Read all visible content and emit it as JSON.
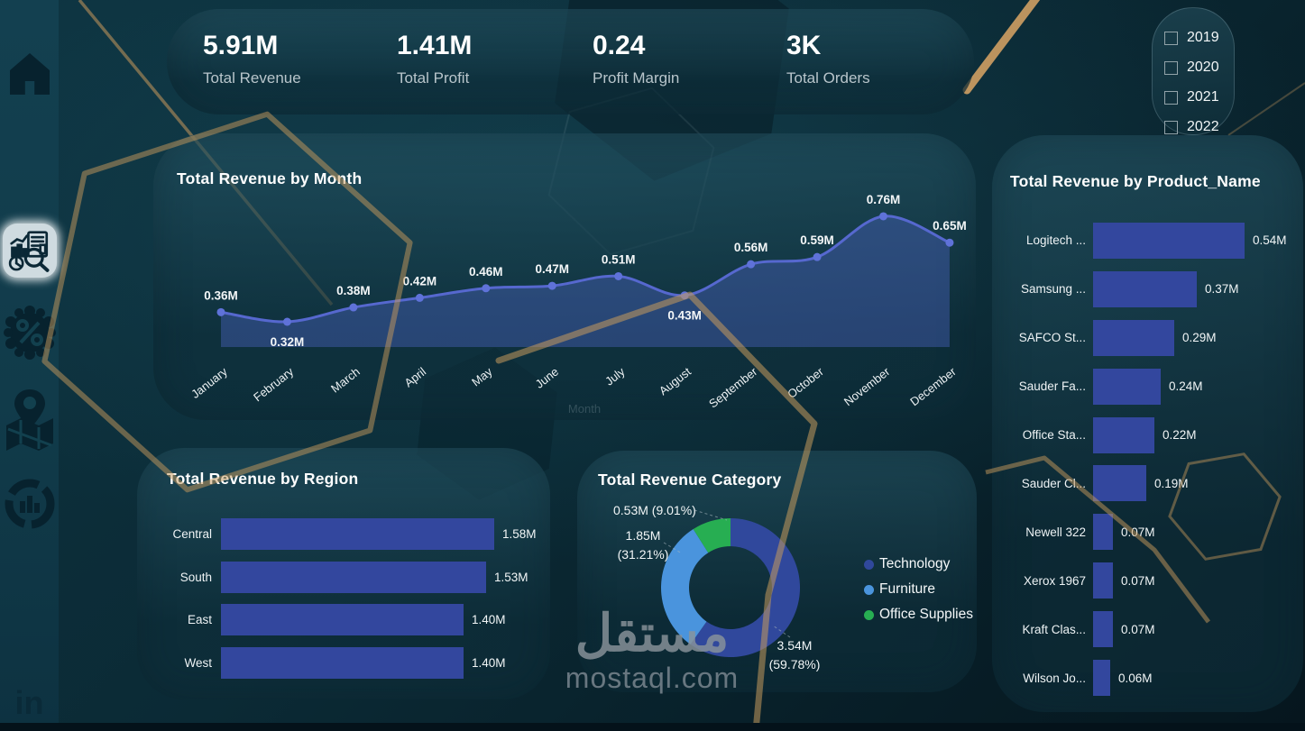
{
  "kpis": [
    {
      "value": "5.91M",
      "label": "Total Revenue"
    },
    {
      "value": "1.41M",
      "label": "Total Profit"
    },
    {
      "value": "0.24",
      "label": "Profit Margin"
    },
    {
      "value": "3K",
      "label": "Total Orders"
    }
  ],
  "year_slicer": {
    "options": [
      {
        "label": "2019",
        "checked": false
      },
      {
        "label": "2020",
        "checked": false
      },
      {
        "label": "2021",
        "checked": false
      },
      {
        "label": "2022",
        "checked": false
      }
    ]
  },
  "sidebar": {
    "items": [
      "home",
      "sales-analytics",
      "discount",
      "map",
      "category-analysis"
    ],
    "active_item": "sales-analytics",
    "linkedin_label": "in"
  },
  "watermark": {
    "arabic": "مستقل",
    "domain": "mostaql.com"
  },
  "colors": {
    "background": "#0b2a35",
    "panel": "rgba(24,62,76,0.64)",
    "bar": "#33479e",
    "line": "#5668cf",
    "point": "#5f72d9",
    "area_fill": "rgba(77,99,195,0.42)",
    "gold": "#c79a5c",
    "technology": "#30489c",
    "furniture": "#4a94dd",
    "office_supplies": "#27ae52",
    "text_primary": "#ffffff",
    "text_secondary": "#b8c5cb"
  },
  "chart_data": [
    {
      "id": "month",
      "type": "area",
      "title": "Total Revenue by Month",
      "xlabel": "Month",
      "categories": [
        "January",
        "February",
        "March",
        "April",
        "May",
        "June",
        "July",
        "August",
        "September",
        "October",
        "November",
        "December"
      ],
      "values": [
        0.36,
        0.32,
        0.38,
        0.42,
        0.46,
        0.47,
        0.51,
        0.43,
        0.56,
        0.59,
        0.76,
        0.65
      ],
      "labels": [
        "0.36M",
        "0.32M",
        "0.38M",
        "0.42M",
        "0.46M",
        "0.47M",
        "0.51M",
        "0.43M",
        "0.56M",
        "0.59M",
        "0.76M",
        "0.65M"
      ],
      "labels_below_indices": [
        1,
        7
      ],
      "ylim": [
        0.3,
        0.8
      ],
      "grid": false
    },
    {
      "id": "product",
      "type": "bar",
      "title": "Total Revenue by Product_Name",
      "categories": [
        "Logitech ...",
        "Samsung ...",
        "SAFCO St...",
        "Sauder Fa...",
        "Office Sta...",
        "Sauder Cl...",
        "Newell 322",
        "Xerox 1967",
        "Kraft Clas...",
        "Wilson Jo..."
      ],
      "values": [
        0.54,
        0.37,
        0.29,
        0.24,
        0.22,
        0.19,
        0.07,
        0.07,
        0.07,
        0.06
      ],
      "labels": [
        "0.54M",
        "0.37M",
        "0.29M",
        "0.24M",
        "0.22M",
        "0.19M",
        "0.07M",
        "0.07M",
        "0.07M",
        "0.06M"
      ]
    },
    {
      "id": "region",
      "type": "bar",
      "title": "Total Revenue by Region",
      "categories": [
        "Central",
        "South",
        "East",
        "West"
      ],
      "values": [
        1.58,
        1.53,
        1.4,
        1.4
      ],
      "labels": [
        "1.58M",
        "1.53M",
        "1.40M",
        "1.40M"
      ]
    },
    {
      "id": "category",
      "type": "donut",
      "title": "Total Revenue Category",
      "legend_position": "right",
      "slices": [
        {
          "name": "Technology",
          "value": 3.54,
          "pct": 59.78,
          "callout": "3.54M\n(59.78%)",
          "color_key": "technology"
        },
        {
          "name": "Furniture",
          "value": 1.85,
          "pct": 31.21,
          "callout": "1.85M\n(31.21%)",
          "color_key": "furniture"
        },
        {
          "name": "Office Supplies",
          "value": 0.53,
          "pct": 9.01,
          "callout": "0.53M (9.01%)",
          "color_key": "office_supplies"
        }
      ]
    }
  ]
}
